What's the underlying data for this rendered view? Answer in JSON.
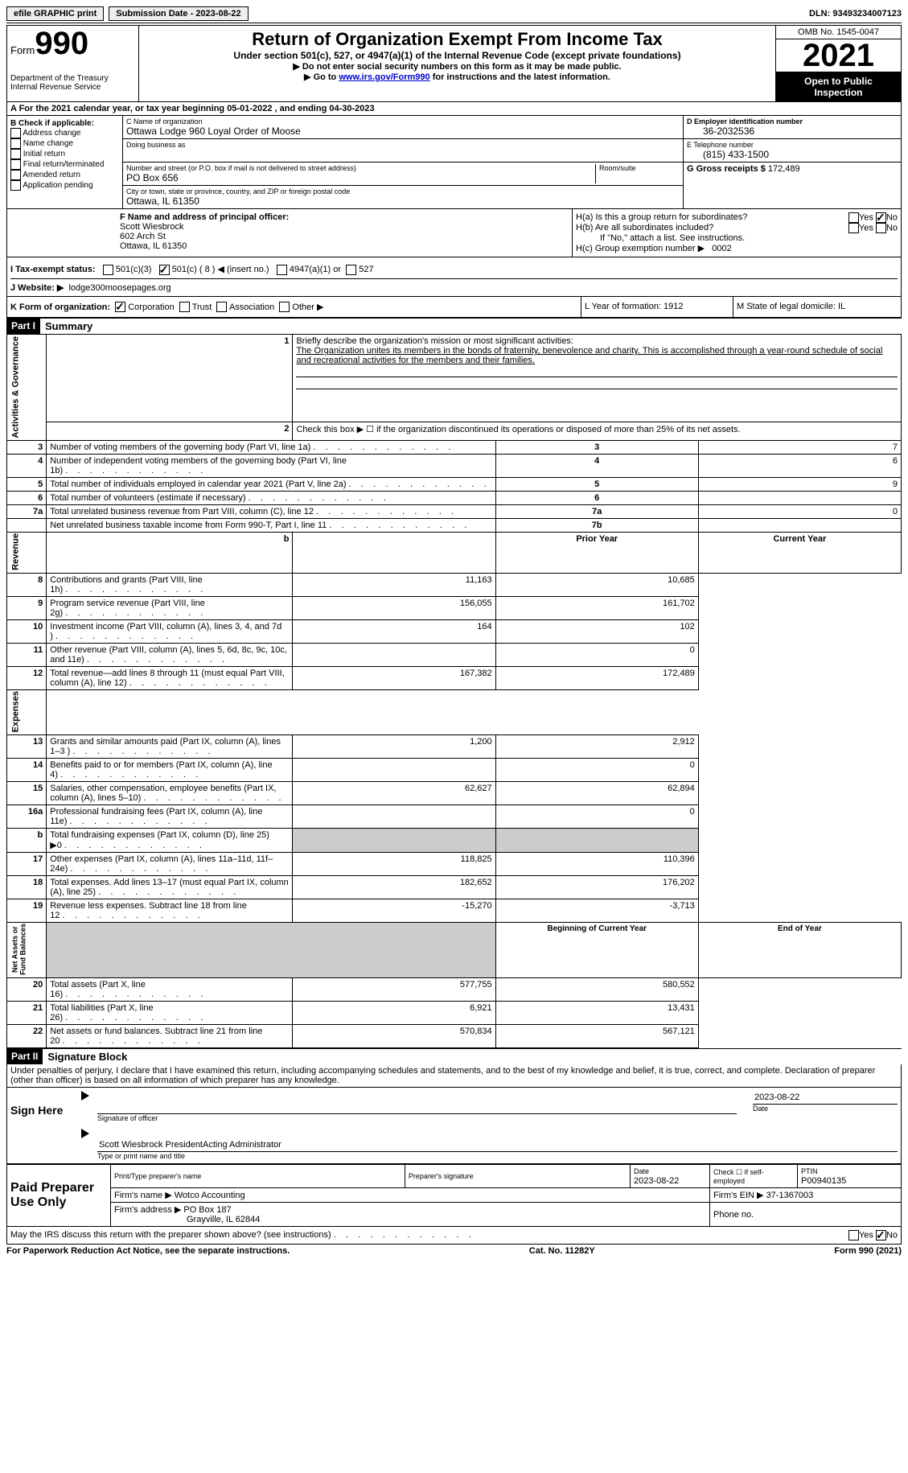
{
  "top": {
    "efile": "efile GRAPHIC print",
    "submission": "Submission Date - 2023-08-22",
    "dln": "DLN: 93493234007123"
  },
  "header": {
    "form_label": "Form",
    "form_num": "990",
    "dept": "Department of the Treasury\nInternal Revenue Service",
    "title": "Return of Organization Exempt From Income Tax",
    "sub": "Under section 501(c), 527, or 4947(a)(1) of the Internal Revenue Code (except private foundations)",
    "line1": "▶ Do not enter social security numbers on this form as it may be made public.",
    "line2_pre": "▶ Go to ",
    "line2_link": "www.irs.gov/Form990",
    "line2_post": " for instructions and the latest information.",
    "omb": "OMB No. 1545-0047",
    "year": "2021",
    "open": "Open to Public Inspection"
  },
  "a": {
    "text": "A  For the 2021 calendar year, or tax year beginning 05-01-2022    , and ending 04-30-2023"
  },
  "b": {
    "label": "B Check if applicable:",
    "opts": [
      "Address change",
      "Name change",
      "Initial return",
      "Final return/terminated",
      "Amended return",
      "Application pending"
    ]
  },
  "c": {
    "name_label": "C Name of organization",
    "name": "Ottawa Lodge 960 Loyal Order of Moose",
    "dba_label": "Doing business as",
    "addr_label": "Number and street (or P.O. box if mail is not delivered to street address)",
    "room_label": "Room/suite",
    "addr": "PO Box 656",
    "city_label": "City or town, state or province, country, and ZIP or foreign postal code",
    "city": "Ottawa, IL  61350"
  },
  "d": {
    "ein_label": "D Employer identification number",
    "ein": "36-2032536",
    "tel_label": "E Telephone number",
    "tel": "(815) 433-1500",
    "gross_label": "G Gross receipts $",
    "gross": "172,489"
  },
  "f": {
    "label": "F Name and address of principal officer:",
    "name": "Scott Wiesbrock",
    "addr1": "602 Arch St",
    "addr2": "Ottawa, IL  61350"
  },
  "h": {
    "ha": "H(a)  Is this a group return for subordinates?",
    "hb": "H(b)  Are all subordinates included?",
    "hb_note": "If \"No,\" attach a list. See instructions.",
    "hc": "H(c)  Group exemption number ▶",
    "hc_val": "0002"
  },
  "i": {
    "label": "I   Tax-exempt status:",
    "opt1": "501(c)(3)",
    "opt2": "501(c) ( 8 ) ◀ (insert no.)",
    "opt3": "4947(a)(1) or",
    "opt4": "527"
  },
  "j": {
    "label": "J   Website: ▶",
    "val": "lodge300moosepages.org"
  },
  "k": {
    "label": "K Form of organization:",
    "opts": [
      "Corporation",
      "Trust",
      "Association",
      "Other ▶"
    ],
    "l": "L Year of formation: 1912",
    "m": "M State of legal domicile: IL"
  },
  "part1": {
    "part": "Part I",
    "title": "Summary",
    "q1_label": "Briefly describe the organization's mission or most significant activities:",
    "q1_text": "The Organization unites its members in the bonds of fraternity, benevolence and charity. This is accomplished through a year-round schedule of social and recreational activities for the members and their families.",
    "q2": "Check this box ▶ ☐  if the organization discontinued its operations or disposed of more than 25% of its net assets.",
    "rows_gov": [
      {
        "n": "3",
        "d": "Number of voting members of the governing body (Part VI, line 1a)",
        "box": "3",
        "v": "7"
      },
      {
        "n": "4",
        "d": "Number of independent voting members of the governing body (Part VI, line 1b)",
        "box": "4",
        "v": "6"
      },
      {
        "n": "5",
        "d": "Total number of individuals employed in calendar year 2021 (Part V, line 2a)",
        "box": "5",
        "v": "9"
      },
      {
        "n": "6",
        "d": "Total number of volunteers (estimate if necessary)",
        "box": "6",
        "v": ""
      },
      {
        "n": "7a",
        "d": "Total unrelated business revenue from Part VIII, column (C), line 12",
        "box": "7a",
        "v": "0"
      },
      {
        "n": "",
        "d": "Net unrelated business taxable income from Form 990-T, Part I, line 11",
        "box": "7b",
        "v": ""
      }
    ],
    "prior": "Prior Year",
    "current": "Current Year",
    "rev": [
      {
        "n": "8",
        "d": "Contributions and grants (Part VIII, line 1h)",
        "p": "11,163",
        "c": "10,685"
      },
      {
        "n": "9",
        "d": "Program service revenue (Part VIII, line 2g)",
        "p": "156,055",
        "c": "161,702"
      },
      {
        "n": "10",
        "d": "Investment income (Part VIII, column (A), lines 3, 4, and 7d )",
        "p": "164",
        "c": "102"
      },
      {
        "n": "11",
        "d": "Other revenue (Part VIII, column (A), lines 5, 6d, 8c, 9c, 10c, and 11e)",
        "p": "",
        "c": "0"
      },
      {
        "n": "12",
        "d": "Total revenue—add lines 8 through 11 (must equal Part VIII, column (A), line 12)",
        "p": "167,382",
        "c": "172,489"
      }
    ],
    "exp": [
      {
        "n": "13",
        "d": "Grants and similar amounts paid (Part IX, column (A), lines 1–3 )",
        "p": "1,200",
        "c": "2,912"
      },
      {
        "n": "14",
        "d": "Benefits paid to or for members (Part IX, column (A), line 4)",
        "p": "",
        "c": "0"
      },
      {
        "n": "15",
        "d": "Salaries, other compensation, employee benefits (Part IX, column (A), lines 5–10)",
        "p": "62,627",
        "c": "62,894"
      },
      {
        "n": "16a",
        "d": "Professional fundraising fees (Part IX, column (A), line 11e)",
        "p": "",
        "c": "0"
      },
      {
        "n": "b",
        "d": "Total fundraising expenses (Part IX, column (D), line 25) ▶0",
        "p": "SHADED",
        "c": "SHADED"
      },
      {
        "n": "17",
        "d": "Other expenses (Part IX, column (A), lines 11a–11d, 11f–24e)",
        "p": "118,825",
        "c": "110,396"
      },
      {
        "n": "18",
        "d": "Total expenses. Add lines 13–17 (must equal Part IX, column (A), line 25)",
        "p": "182,652",
        "c": "176,202"
      },
      {
        "n": "19",
        "d": "Revenue less expenses. Subtract line 18 from line 12",
        "p": "-15,270",
        "c": "-3,713"
      }
    ],
    "begin": "Beginning of Current Year",
    "end": "End of Year",
    "net": [
      {
        "n": "20",
        "d": "Total assets (Part X, line 16)",
        "p": "577,755",
        "c": "580,552"
      },
      {
        "n": "21",
        "d": "Total liabilities (Part X, line 26)",
        "p": "6,921",
        "c": "13,431"
      },
      {
        "n": "22",
        "d": "Net assets or fund balances. Subtract line 21 from line 20",
        "p": "570,834",
        "c": "567,121"
      }
    ]
  },
  "part2": {
    "part": "Part II",
    "title": "Signature Block",
    "perjury": "Under penalties of perjury, I declare that I have examined this return, including accompanying schedules and statements, and to the best of my knowledge and belief, it is true, correct, and complete. Declaration of preparer (other than officer) is based on all information of which preparer has any knowledge.",
    "sign_here": "Sign Here",
    "sig_officer": "Signature of officer",
    "sig_date": "2023-08-22",
    "date_label": "Date",
    "officer_name": "Scott Wiesbrock  PresidentActing Administrator",
    "name_label": "Type or print name and title",
    "paid": "Paid Preparer Use Only",
    "prep_name_label": "Print/Type preparer's name",
    "prep_sig_label": "Preparer's signature",
    "prep_date_label": "Date",
    "prep_date": "2023-08-22",
    "check_if": "Check ☐ if self-employed",
    "ptin_label": "PTIN",
    "ptin": "P00940135",
    "firm_name_label": "Firm's name     ▶",
    "firm_name": "Wotco Accounting",
    "firm_ein_label": "Firm's EIN ▶",
    "firm_ein": "37-1367003",
    "firm_addr_label": "Firm's address ▶",
    "firm_addr": "PO Box 187",
    "firm_city": "Grayville, IL  62844",
    "phone_label": "Phone no.",
    "discuss": "May the IRS discuss this return with the preparer shown above? (see instructions)"
  },
  "footer": {
    "left": "For Paperwork Reduction Act Notice, see the separate instructions.",
    "mid": "Cat. No. 11282Y",
    "right": "Form 990 (2021)"
  }
}
